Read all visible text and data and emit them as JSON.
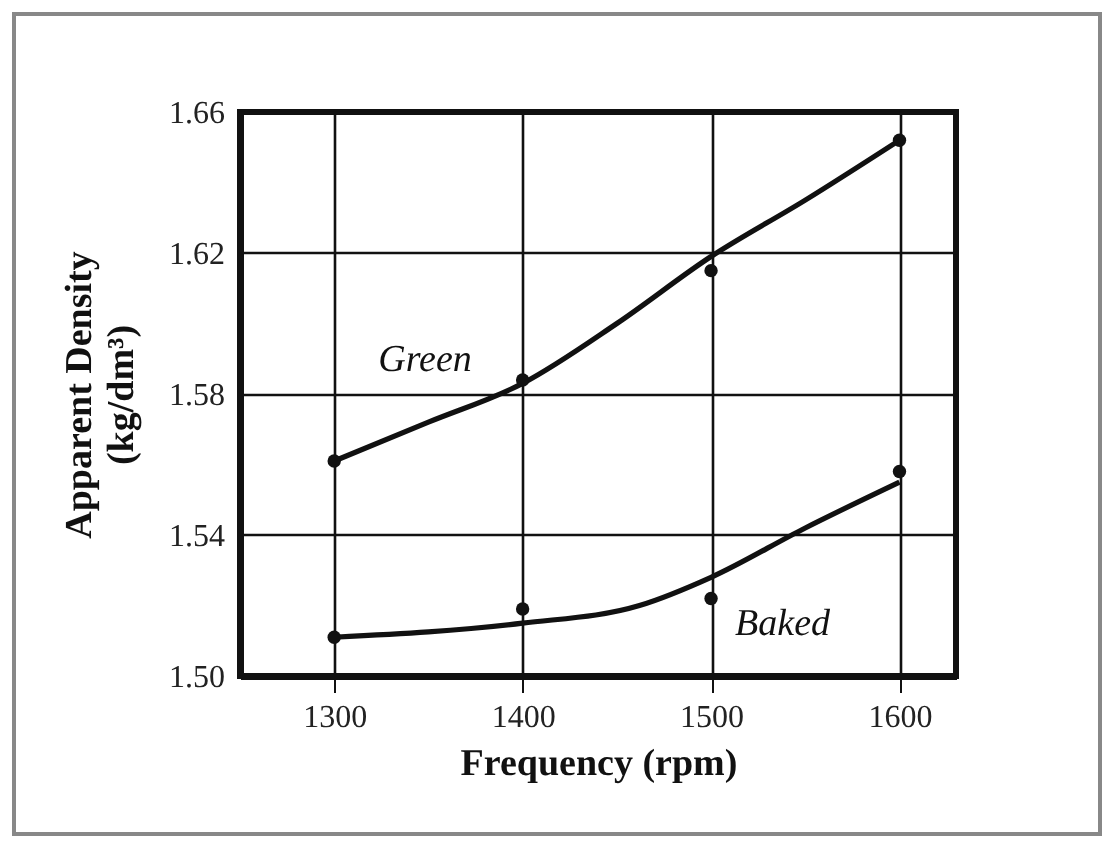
{
  "chart_data": {
    "type": "line",
    "xlabel": "Frequency (rpm)",
    "ylabel": "Apparent Density\n(kg/dm³)",
    "xlim": [
      1250,
      1630
    ],
    "xticks": [
      1300,
      1400,
      1500,
      1600
    ],
    "ylim": [
      1.5,
      1.66
    ],
    "yticks": [
      {
        "value": 1.5,
        "label": "1.50"
      },
      1.54,
      1.58,
      1.62,
      1.66
    ],
    "grid": true,
    "series": [
      {
        "name": "Green",
        "color": "#111111",
        "x": [
          1300,
          1350,
          1400,
          1450,
          1500,
          1550,
          1600
        ],
        "values": [
          1.561,
          1.572,
          1.583,
          1.6,
          1.619,
          1.635,
          1.652
        ],
        "marker": "none"
      },
      {
        "name": "Baked",
        "color": "#111111",
        "x": [
          1300,
          1400,
          1462,
          1500,
          1550,
          1600
        ],
        "values": [
          1.511,
          1.515,
          1.52,
          1.528,
          1.542,
          1.555
        ],
        "marker": "none"
      },
      {
        "type": "scatter",
        "color": "#111111",
        "x": [
          1300,
          1400,
          1500,
          1600
        ],
        "values": [
          1.561,
          1.584,
          1.615,
          1.652
        ],
        "marker": "circle"
      },
      {
        "type": "scatter",
        "color": "#111111",
        "x": [
          1300,
          1400,
          1500,
          1600
        ],
        "values": [
          1.511,
          1.519,
          1.522,
          1.558
        ],
        "marker": "circle"
      }
    ]
  }
}
